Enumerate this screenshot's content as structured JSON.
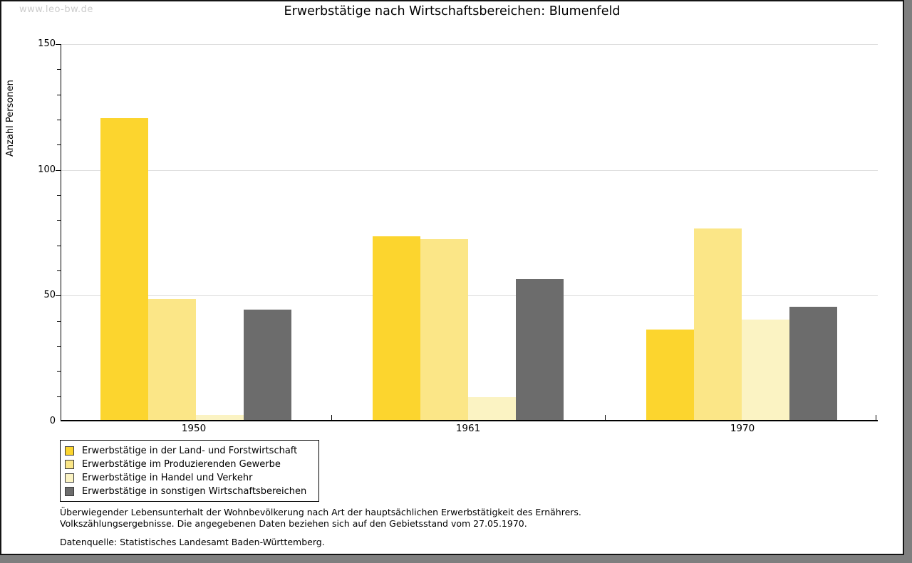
{
  "watermark": "www.leo-bw.de",
  "title": "Erwerbstätige nach Wirtschaftsbereichen: Blumenfeld",
  "chart_data": {
    "type": "bar",
    "title": "Erwerbstätige nach Wirtschaftsbereichen: Blumenfeld",
    "xlabel": "",
    "ylabel": "Anzahl Personen",
    "categories": [
      "1950",
      "1961",
      "1970"
    ],
    "series": [
      {
        "name": "Erwerbstätige in der Land- und Forstwirtschaft",
        "color": "#FCD52E",
        "values": [
          120,
          73,
          36
        ]
      },
      {
        "name": "Erwerbstätige im Produzierenden Gewerbe",
        "color": "#FBE687",
        "values": [
          48,
          72,
          76
        ]
      },
      {
        "name": "Erwerbstätige in Handel und Verkehr",
        "color": "#FBF3C3",
        "values": [
          2,
          9,
          40
        ]
      },
      {
        "name": "Erwerbstätige in sonstigen Wirtschaftsbereichen",
        "color": "#6C6C6C",
        "values": [
          44,
          56,
          45
        ]
      }
    ],
    "ylim": [
      0,
      150
    ],
    "ytick_major": [
      0,
      50,
      100,
      150
    ],
    "ytick_minor_step": 10,
    "grid": "horizontal light-gray lines at major ticks",
    "legend_position": "bottom-left boxed"
  },
  "footnotes": {
    "line1": "Überwiegender Lebensunterhalt der Wohnbevölkerung nach Art der hauptsächlichen Erwerbstätigkeit des Ernährers.",
    "line2": "Volkszählungsergebnisse. Die angegebenen Daten beziehen sich auf den Gebietsstand vom 27.05.1970.",
    "source": "Datenquelle: Statistisches Landesamt Baden-Württemberg."
  },
  "colors": {
    "background": "#ffffff",
    "frame": "#141414",
    "shadow": "#7f7f7f",
    "gridline": "#dedede",
    "axis": "#000000",
    "watermark": "#cccccc"
  }
}
